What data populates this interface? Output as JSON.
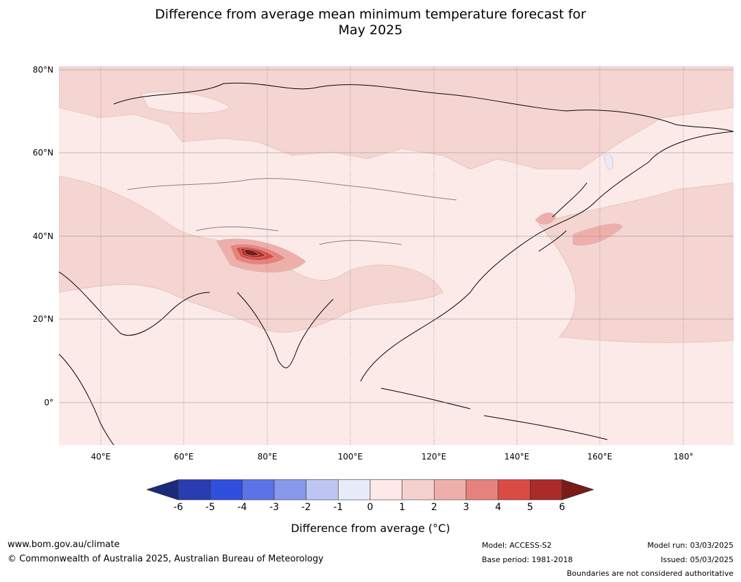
{
  "title_line1": "Difference from average mean minimum temperature forecast for",
  "title_line2": "May 2025",
  "lat_ticks": [
    "80°N",
    "60°N",
    "40°N",
    "20°N",
    "0°"
  ],
  "lon_ticks": [
    "40°E",
    "60°E",
    "80°E",
    "100°E",
    "120°E",
    "140°E",
    "160°E",
    "180°"
  ],
  "colorbar": {
    "labels": [
      "-6",
      "-5",
      "-4",
      "-3",
      "-2",
      "-1",
      "0",
      "1",
      "2",
      "3",
      "4",
      "5",
      "6"
    ],
    "colors": [
      "#1c2a7a",
      "#2a3db0",
      "#2f4fdc",
      "#5b73e4",
      "#8898ea",
      "#bdc6f2",
      "#e8ebf9",
      "#fde9e7",
      "#f5d1ce",
      "#eeafab",
      "#e6827c",
      "#d94b43",
      "#aa2b27",
      "#7a1b1a"
    ],
    "title": "Difference from average (°C)"
  },
  "footer": {
    "website": "www.bom.gov.au/climate",
    "copyright": "© Commonwealth of Australia 2025, Australian Bureau of Meteorology",
    "model": "Model: ACCESS-S2",
    "base_period": "Base period: 1981-2018",
    "model_run": "Model run: 03/03/2025",
    "issued": "Issued: 05/03/2025",
    "disclaimer": "Boundaries are not considered authoritative"
  }
}
